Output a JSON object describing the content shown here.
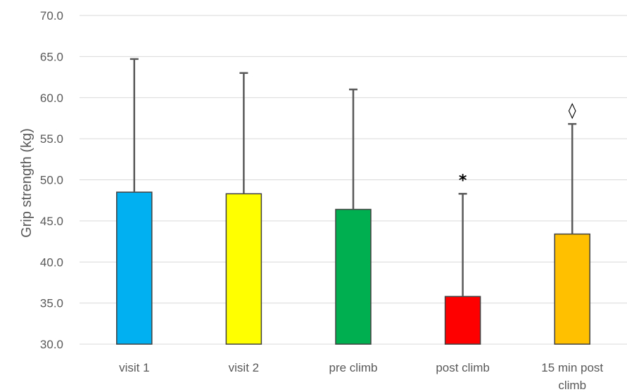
{
  "chart_data": {
    "type": "bar",
    "categories": [
      "visit 1",
      "visit 2",
      "pre climb",
      "post climb",
      "15 min post climb"
    ],
    "category_label_lines": [
      [
        "visit 1"
      ],
      [
        "visit 2"
      ],
      [
        "pre climb"
      ],
      [
        "post climb"
      ],
      [
        "15 min post",
        "climb"
      ]
    ],
    "values": [
      48.5,
      48.3,
      46.4,
      35.8,
      43.4
    ],
    "error_upper": [
      64.7,
      63.0,
      61.0,
      48.3,
      56.8
    ],
    "colors": [
      "#00B0F0",
      "#FFFF00",
      "#00B050",
      "#FF0000",
      "#FFC000"
    ],
    "annotations": [
      "",
      "",
      "",
      "*",
      "◊"
    ],
    "ylabel": "Grip strength (kg)",
    "xlabel": "",
    "ylim": [
      30.0,
      70.0
    ],
    "yticks": [
      "30.0",
      "35.0",
      "40.0",
      "45.0",
      "50.0",
      "55.0",
      "60.0",
      "65.0",
      "70.0"
    ],
    "grid": true,
    "legend": "none"
  }
}
